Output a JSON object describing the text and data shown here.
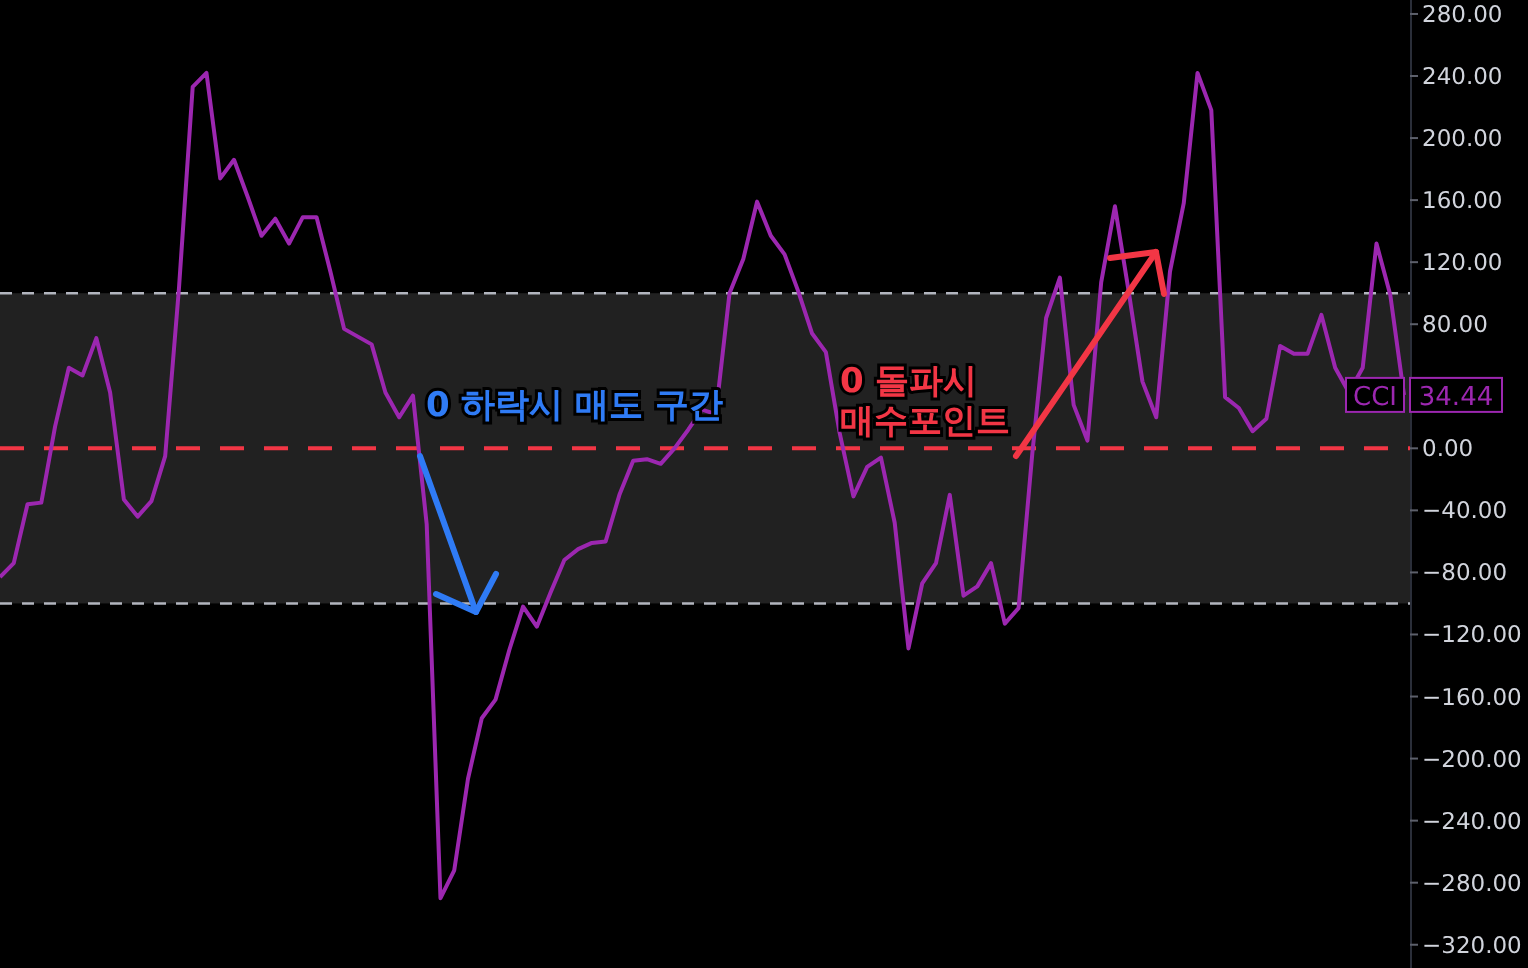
{
  "chart_data": {
    "type": "line",
    "categories": [
      null,
      null,
      null,
      null,
      null,
      null,
      null,
      null,
      null,
      null,
      null,
      null,
      null,
      null,
      null,
      null,
      null,
      null,
      null,
      null,
      null,
      null,
      null,
      null,
      null,
      null,
      null,
      null,
      null,
      null,
      null,
      null,
      null,
      null,
      null,
      null,
      null,
      null,
      null,
      null,
      null,
      null,
      null,
      null,
      null,
      null,
      null,
      null,
      null,
      null,
      null,
      null,
      null,
      null,
      null,
      null,
      null,
      null,
      null,
      null,
      null,
      null,
      null,
      null,
      null,
      null,
      null,
      null,
      null,
      null,
      null,
      null,
      null,
      null,
      null,
      null,
      null,
      null,
      null,
      null,
      null,
      null,
      null,
      null,
      null,
      null,
      null,
      null,
      null,
      null,
      null,
      null,
      null,
      null,
      null,
      null,
      null,
      null,
      null,
      null,
      null,
      null,
      null
    ],
    "series": [
      {
        "name": "CCI",
        "color": "#9c27b0",
        "values": [
          -83,
          -74,
          -36,
          -35,
          14,
          52,
          47,
          71,
          36,
          -33,
          -44,
          -34,
          -5,
          103,
          233,
          242,
          174,
          186,
          162,
          137,
          148,
          132,
          149,
          149,
          114,
          77,
          72,
          67,
          36,
          20,
          34,
          -49,
          -290,
          -272,
          -213,
          -174,
          -162,
          -130,
          -102,
          -115,
          -93,
          -72,
          -65,
          -61,
          -60,
          -30,
          -8,
          -7,
          -10,
          0,
          12,
          25,
          22,
          100,
          122,
          159,
          137,
          125,
          101,
          74,
          62,
          10,
          -31,
          -12,
          -6,
          -48,
          -129,
          -87,
          -74,
          -30,
          -95,
          -89,
          -74,
          -113,
          -103,
          -3,
          84,
          110,
          28,
          5,
          107,
          156,
          101,
          43,
          20,
          114,
          158,
          242,
          218,
          33,
          26,
          11,
          19,
          66,
          61,
          61,
          86,
          52,
          36,
          52,
          132,
          99,
          34.44
        ],
        "value_labels": [
          null,
          null,
          null,
          null,
          null,
          null,
          null,
          null,
          null,
          null,
          null,
          null,
          null,
          null,
          null,
          null,
          null,
          null,
          null,
          null,
          null,
          null,
          null,
          null,
          null,
          null,
          null,
          null,
          null,
          null,
          null,
          null,
          null,
          null,
          null,
          null,
          null,
          null,
          null,
          null,
          null,
          null,
          null,
          null,
          null,
          null,
          null,
          null,
          null,
          null,
          null,
          null,
          null,
          null,
          null,
          null,
          null,
          null,
          null,
          null,
          null,
          null,
          null,
          null,
          null,
          null,
          null,
          null,
          null,
          null,
          null,
          null,
          null,
          null,
          null,
          null,
          null,
          null,
          null,
          null,
          null,
          null,
          null,
          null,
          null,
          null,
          null,
          null,
          null,
          null,
          null,
          null,
          null,
          null,
          null,
          null,
          null,
          null,
          null,
          null,
          null,
          null,
          "34.44"
        ]
      }
    ],
    "ylim": [
      -335,
      289
    ],
    "yticks": [
      {
        "value": 280,
        "label": "280.00"
      },
      {
        "value": 240,
        "label": "240.00"
      },
      {
        "value": 200,
        "label": "200.00"
      },
      {
        "value": 160,
        "label": "160.00"
      },
      {
        "value": 120,
        "label": "120.00"
      },
      {
        "value": 80,
        "label": "80.00"
      },
      {
        "value": 40,
        "label": null
      },
      {
        "value": 0,
        "label": "0.00"
      },
      {
        "value": -40,
        "label": "−40.00"
      },
      {
        "value": -80,
        "label": "−80.00"
      },
      {
        "value": -120,
        "label": "−120.00"
      },
      {
        "value": -160,
        "label": "−160.00"
      },
      {
        "value": -200,
        "label": "−200.00"
      },
      {
        "value": -240,
        "label": "−240.00"
      },
      {
        "value": -280,
        "label": "−280.00"
      },
      {
        "value": -320,
        "label": "−320.00"
      }
    ],
    "ref_lines": [
      {
        "axis": "y",
        "value": 100,
        "color": "#b2b5be",
        "line_style": "dashed"
      },
      {
        "axis": "y",
        "value": -100,
        "color": "#b2b5be",
        "line_style": "dashed"
      },
      {
        "axis": "y",
        "value": 0,
        "color": "#f23645",
        "line_style": "dashed"
      }
    ],
    "bands": [
      {
        "axis": "y",
        "from": -100,
        "to": 100,
        "color": "#212121"
      }
    ],
    "annotations": [
      "0 하락시 매도 구간",
      "0 돌파시 매수포인트"
    ],
    "grid": false,
    "legend": "right",
    "marker": "none",
    "line_style": "solid"
  }
}
